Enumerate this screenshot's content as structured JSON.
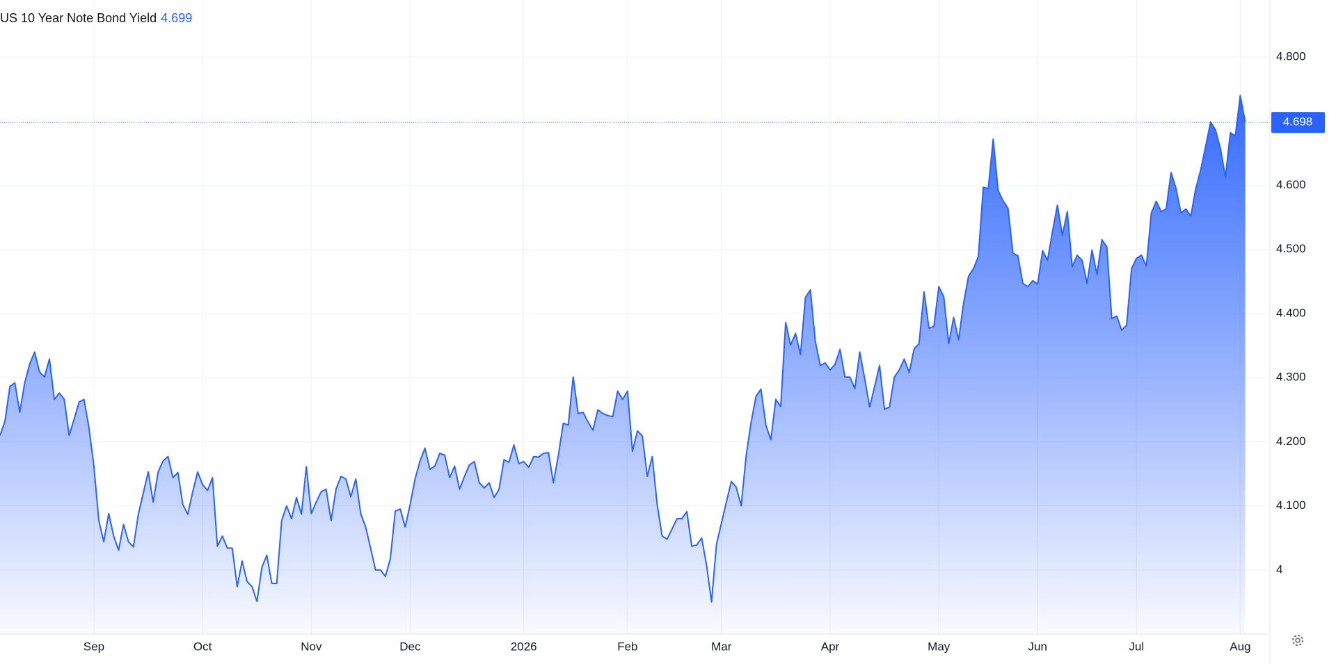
{
  "chart_data": {
    "type": "area",
    "title": "US 10 Year Note Bond Yield",
    "last_value": 4.699,
    "price_line": 4.698,
    "color": "#2962ff",
    "grid": true,
    "xlim": [
      0,
      257
    ],
    "ylim": [
      3.9,
      4.889
    ],
    "xticks": [
      {
        "value": 19,
        "label": "Sep"
      },
      {
        "value": 41,
        "label": "Oct"
      },
      {
        "value": 63,
        "label": "Nov"
      },
      {
        "value": 83,
        "label": "Dec"
      },
      {
        "value": 106,
        "label": "2026"
      },
      {
        "value": 127,
        "label": "Feb"
      },
      {
        "value": 146,
        "label": "Mar"
      },
      {
        "value": 168,
        "label": "Apr"
      },
      {
        "value": 190,
        "label": "May"
      },
      {
        "value": 210,
        "label": "Jun"
      },
      {
        "value": 230,
        "label": "Jul"
      },
      {
        "value": 251,
        "label": "Aug"
      }
    ],
    "yticks": [
      {
        "value": 4.8,
        "label": "4.800"
      },
      {
        "value": 4.6,
        "label": "4.600"
      },
      {
        "value": 4.5,
        "label": "4.500"
      },
      {
        "value": 4.4,
        "label": "4.400"
      },
      {
        "value": 4.3,
        "label": "4.300"
      },
      {
        "value": 4.2,
        "label": "4.200"
      },
      {
        "value": 4.1,
        "label": "4.100"
      },
      4
    ],
    "x": [
      0,
      1,
      2,
      3,
      4,
      5,
      6,
      7,
      8,
      9,
      10,
      11,
      12,
      13,
      14,
      15,
      16,
      17,
      18,
      19,
      20,
      21,
      22,
      23,
      24,
      25,
      26,
      27,
      28,
      29,
      30,
      31,
      32,
      33,
      34,
      35,
      36,
      37,
      38,
      39,
      40,
      41,
      42,
      43,
      44,
      45,
      46,
      47,
      48,
      49,
      50,
      51,
      52,
      53,
      54,
      55,
      56,
      57,
      58,
      59,
      60,
      61,
      62,
      63,
      64,
      65,
      66,
      67,
      68,
      69,
      70,
      71,
      72,
      73,
      74,
      75,
      76,
      77,
      78,
      79,
      80,
      81,
      82,
      83,
      84,
      85,
      86,
      87,
      88,
      89,
      90,
      91,
      92,
      93,
      94,
      95,
      96,
      97,
      98,
      99,
      100,
      101,
      102,
      103,
      104,
      105,
      106,
      107,
      108,
      109,
      110,
      111,
      112,
      113,
      114,
      115,
      116,
      117,
      118,
      119,
      120,
      121,
      122,
      123,
      124,
      125,
      126,
      127,
      128,
      129,
      130,
      131,
      132,
      133,
      134,
      135,
      136,
      137,
      138,
      139,
      140,
      141,
      142,
      143,
      144,
      145,
      146,
      147,
      148,
      149,
      150,
      151,
      152,
      153,
      154,
      155,
      156,
      157,
      158,
      159,
      160,
      161,
      162,
      163,
      164,
      165,
      166,
      167,
      168,
      169,
      170,
      171,
      172,
      173,
      174,
      175,
      176,
      177,
      178,
      179,
      180,
      181,
      182,
      183,
      184,
      185,
      186,
      187,
      188,
      189,
      190,
      191,
      192,
      193,
      194,
      195,
      196,
      197,
      198,
      199,
      200,
      201,
      202,
      203,
      204,
      205,
      206,
      207,
      208,
      209,
      210,
      211,
      212,
      213,
      214,
      215,
      216,
      217,
      218,
      219,
      220,
      221,
      222,
      223,
      224,
      225,
      226,
      227,
      228,
      229,
      230,
      231,
      232,
      233,
      234,
      235,
      236,
      237,
      238,
      239,
      240,
      241,
      242,
      243,
      244,
      245,
      246,
      247,
      248,
      249,
      250,
      251,
      252
    ],
    "values": [
      4.21,
      4.232,
      4.286,
      4.292,
      4.246,
      4.292,
      4.321,
      4.34,
      4.309,
      4.301,
      4.329,
      4.266,
      4.276,
      4.266,
      4.21,
      4.235,
      4.262,
      4.266,
      4.222,
      4.162,
      4.077,
      4.044,
      4.088,
      4.053,
      4.031,
      4.071,
      4.044,
      4.036,
      4.087,
      4.12,
      4.153,
      4.106,
      4.153,
      4.17,
      4.177,
      4.144,
      4.152,
      4.102,
      4.087,
      4.122,
      4.153,
      4.133,
      4.124,
      4.144,
      4.037,
      4.053,
      4.034,
      4.034,
      3.974,
      4.014,
      3.982,
      3.974,
      3.951,
      4.004,
      4.023,
      3.979,
      3.979,
      4.077,
      4.1,
      4.08,
      4.113,
      4.087,
      4.161,
      4.088,
      4.106,
      4.122,
      4.126,
      4.077,
      4.126,
      4.146,
      4.142,
      4.114,
      4.142,
      4.088,
      4.067,
      4.034,
      4.0,
      4.0,
      3.99,
      4.018,
      4.092,
      4.095,
      4.067,
      4.102,
      4.142,
      4.17,
      4.19,
      4.157,
      4.162,
      4.182,
      4.179,
      4.144,
      4.162,
      4.126,
      4.146,
      4.164,
      4.169,
      4.136,
      4.128,
      4.136,
      4.113,
      4.126,
      4.172,
      4.168,
      4.195,
      4.166,
      4.169,
      4.16,
      4.177,
      4.176,
      4.182,
      4.183,
      4.136,
      4.179,
      4.229,
      4.226,
      4.301,
      4.244,
      4.246,
      4.231,
      4.218,
      4.25,
      4.244,
      4.241,
      4.239,
      4.279,
      4.266,
      4.279,
      4.185,
      4.217,
      4.209,
      4.146,
      4.177,
      4.102,
      4.053,
      4.048,
      4.064,
      4.08,
      4.08,
      4.091,
      4.037,
      4.039,
      4.05,
      4.007,
      3.95,
      4.04,
      4.073,
      4.106,
      4.138,
      4.129,
      4.1,
      4.178,
      4.23,
      4.271,
      4.282,
      4.226,
      4.203,
      4.266,
      4.255,
      4.386,
      4.351,
      4.369,
      4.336,
      4.425,
      4.437,
      4.357,
      4.319,
      4.323,
      4.312,
      4.321,
      4.344,
      4.301,
      4.301,
      4.283,
      4.34,
      4.298,
      4.254,
      4.286,
      4.319,
      4.251,
      4.254,
      4.301,
      4.312,
      4.329,
      4.308,
      4.345,
      4.353,
      4.434,
      4.377,
      4.38,
      4.442,
      4.426,
      4.353,
      4.394,
      4.359,
      4.416,
      4.458,
      4.47,
      4.489,
      4.597,
      4.595,
      4.672,
      4.592,
      4.576,
      4.564,
      4.494,
      4.49,
      4.447,
      4.442,
      4.451,
      4.446,
      4.498,
      4.483,
      4.528,
      4.569,
      4.522,
      4.559,
      4.473,
      4.491,
      4.483,
      4.447,
      4.499,
      4.461,
      4.515,
      4.504,
      4.392,
      4.396,
      4.374,
      4.382,
      4.47,
      4.486,
      4.491,
      4.474,
      4.557,
      4.575,
      4.559,
      4.563,
      4.62,
      4.595,
      4.557,
      4.563,
      4.552,
      4.595,
      4.624,
      4.661,
      4.699,
      4.686,
      4.657,
      4.613,
      4.682,
      4.677,
      4.74,
      4.699
    ]
  }
}
